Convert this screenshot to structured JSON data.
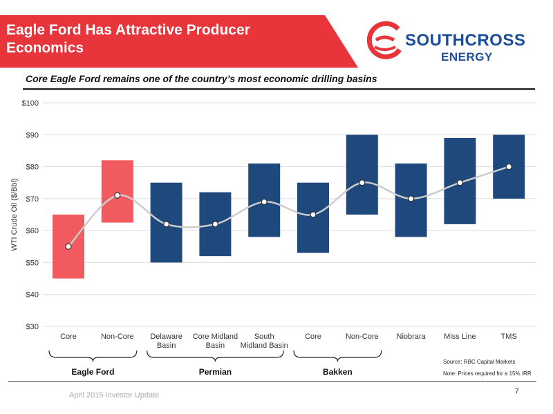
{
  "header": {
    "title": "Eagle Ford Has Attractive Producer Economics",
    "logo_text_1": "SOUTHCROSS",
    "logo_text_2": "ENERGY",
    "brand_red": "#e8343b",
    "brand_blue": "#1b4e9b"
  },
  "subtitle": "Core Eagle Ford remains one of the country’s most economic drilling basins",
  "chart_data": {
    "type": "floating-bar",
    "ylabel": "WTI Crude Oil ($/Bbl)",
    "ylim": [
      30,
      100
    ],
    "yticks": [
      30,
      40,
      50,
      60,
      70,
      80,
      90,
      100
    ],
    "ytick_labels": [
      "$30",
      "$40",
      "$50",
      "$60",
      "$70",
      "$80",
      "$90",
      "$100"
    ],
    "grid": true,
    "categories": [
      {
        "label": [
          "Core"
        ],
        "low": 45,
        "high": 65,
        "point": 55,
        "color": "#f15a5e"
      },
      {
        "label": [
          "Non-Core"
        ],
        "low": 62.5,
        "high": 82,
        "point": 71,
        "color": "#f15a5e"
      },
      {
        "label": [
          "Delaware",
          "Basin"
        ],
        "low": 50,
        "high": 75,
        "point": 62,
        "color": "#1f497d"
      },
      {
        "label": [
          "Core Midland",
          "Basin"
        ],
        "low": 52,
        "high": 72,
        "point": 62,
        "color": "#1f497d"
      },
      {
        "label": [
          "South",
          "Midland Basin"
        ],
        "low": 58,
        "high": 81,
        "point": 69,
        "color": "#1f497d"
      },
      {
        "label": [
          "Core"
        ],
        "low": 53,
        "high": 75,
        "point": 65,
        "color": "#1f497d"
      },
      {
        "label": [
          "Non-Core"
        ],
        "low": 65,
        "high": 90,
        "point": 75,
        "color": "#1f497d"
      },
      {
        "label": [
          "Niobrara"
        ],
        "low": 58,
        "high": 81,
        "point": 70,
        "color": "#1f497d"
      },
      {
        "label": [
          "Miss Line"
        ],
        "low": 62,
        "high": 89,
        "point": 75,
        "color": "#1f497d"
      },
      {
        "label": [
          "TMS"
        ],
        "low": 70,
        "high": 90,
        "point": 80,
        "color": "#1f497d"
      }
    ],
    "groups": [
      {
        "label": "Eagle Ford",
        "start": 0,
        "end": 1
      },
      {
        "label": "Permian",
        "start": 2,
        "end": 4
      },
      {
        "label": "Bakken",
        "start": 5,
        "end": 6
      }
    ]
  },
  "source_note": "Source: RBC Capital Markets",
  "price_note": "Note: Prices required for a 15% IRR",
  "footer": {
    "text": "April 2015 Investor Update",
    "page": "7"
  }
}
